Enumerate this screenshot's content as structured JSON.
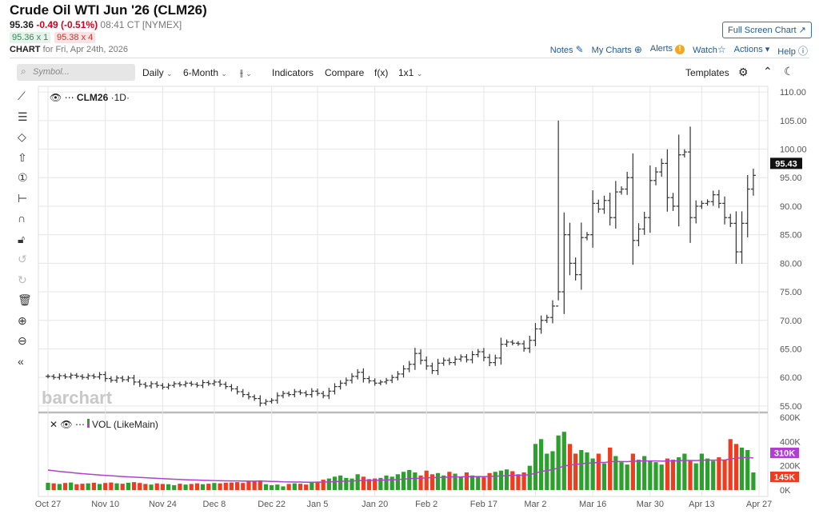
{
  "header": {
    "title": "Crude Oil WTI Jun '26 (CLM26)",
    "last": "95.36",
    "change": "-0.49 (-0.51%)",
    "time": "08:41 CT [NYMEX]",
    "bid": "95.36 x 1",
    "ask": "95.38 x 4",
    "chart_label": "CHART",
    "chart_for": "for Fri, Apr 24th, 2026"
  },
  "actions": {
    "fullscreen": "Full Screen Chart",
    "notes": "Notes",
    "my_charts": "My Charts",
    "alerts": "Alerts",
    "watch": "Watch",
    "actions": "Actions",
    "help": "Help"
  },
  "toolbar": {
    "search_placeholder": "Symbol...",
    "interval": "Daily",
    "range": "6-Month",
    "indicators": "Indicators",
    "compare": "Compare",
    "fx": "f(x)",
    "layout": "1x1",
    "templates": "Templates"
  },
  "legend": {
    "symbol": "CLM26",
    "interval": "·1D·",
    "volume": "VOL (LikeMain)"
  },
  "watermark": "barchart",
  "colors": {
    "up": "#2ca02c",
    "down": "#f03c1e",
    "ma": "#b13fd1",
    "price_tag": "#111111"
  },
  "price_axis": {
    "ticks": [
      55,
      60,
      65,
      70,
      75,
      80,
      85,
      90,
      95,
      100,
      105,
      110
    ],
    "min": 54,
    "max": 111,
    "current": "95.43"
  },
  "volume_axis": {
    "ticks": [
      "0K",
      "200K",
      "400K",
      "600K"
    ],
    "ma_tag": "310K",
    "vol_tag": "145K",
    "max": 600
  },
  "x_axis": [
    {
      "i": 0,
      "label": "Oct 27"
    },
    {
      "i": 10,
      "label": "Nov 10"
    },
    {
      "i": 20,
      "label": "Nov 24"
    },
    {
      "i": 29,
      "label": "Dec 8"
    },
    {
      "i": 39,
      "label": "Dec 22"
    },
    {
      "i": 47,
      "label": "Jan 5"
    },
    {
      "i": 57,
      "label": "Jan 20"
    },
    {
      "i": 66,
      "label": "Feb 2"
    },
    {
      "i": 76,
      "label": "Feb 17"
    },
    {
      "i": 85,
      "label": "Mar 2"
    },
    {
      "i": 95,
      "label": "Mar 16"
    },
    {
      "i": 105,
      "label": "Mar 30"
    },
    {
      "i": 114,
      "label": "Apr 13"
    },
    {
      "i": 124,
      "label": "Apr 27"
    }
  ],
  "chart_data": {
    "type": "ohlc",
    "closes": [
      60.2,
      60.0,
      60.3,
      60.1,
      60.4,
      60.2,
      60.0,
      60.3,
      60.1,
      60.5,
      59.8,
      59.5,
      59.9,
      59.6,
      59.9,
      59.2,
      58.8,
      58.5,
      58.9,
      58.6,
      58.3,
      58.6,
      58.9,
      58.7,
      59.0,
      58.8,
      58.6,
      59.1,
      58.9,
      59.2,
      58.8,
      58.4,
      58.0,
      57.5,
      57.0,
      56.6,
      56.3,
      55.5,
      55.8,
      56.0,
      56.8,
      57.2,
      57.0,
      57.5,
      57.3,
      57.0,
      57.6,
      57.2,
      56.8,
      57.6,
      58.4,
      59.0,
      59.5,
      60.2,
      60.9,
      59.8,
      59.4,
      59.0,
      59.2,
      59.5,
      60.0,
      60.6,
      61.5,
      62.3,
      64.2,
      63.0,
      62.0,
      61.2,
      62.5,
      63.0,
      62.6,
      63.2,
      63.6,
      63.1,
      64.0,
      64.5,
      63.5,
      62.6,
      63.4,
      65.8,
      66.2,
      66.0,
      65.9,
      65.1,
      66.5,
      68.5,
      70.0,
      70.5,
      72.5,
      75.0,
      85.0,
      80.0,
      78.0,
      84.5,
      85.0,
      90.5,
      89.5,
      91.0,
      88.0,
      92.5,
      93.0,
      95.0,
      84.0,
      86.0,
      88.0,
      94.5,
      96.0,
      97.5,
      91.5,
      90.0,
      99.0,
      99.5,
      88.0,
      90.0,
      90.5,
      90.8,
      92.0,
      90.5,
      88.0,
      87.0,
      82.0,
      87.0,
      93.0,
      95.4
    ],
    "volumes_k": [
      60,
      55,
      50,
      58,
      62,
      48,
      52,
      55,
      60,
      50,
      58,
      62,
      55,
      52,
      60,
      65,
      58,
      50,
      45,
      55,
      50,
      48,
      40,
      52,
      45,
      50,
      55,
      48,
      52,
      58,
      55,
      60,
      62,
      65,
      58,
      70,
      75,
      80,
      48,
      40,
      45,
      30,
      50,
      55,
      52,
      45,
      60,
      70,
      85,
      95,
      110,
      120,
      100,
      95,
      130,
      110,
      90,
      95,
      100,
      120,
      110,
      130,
      150,
      165,
      145,
      120,
      160,
      130,
      140,
      120,
      150,
      135,
      110,
      145,
      120,
      115,
      105,
      140,
      150,
      160,
      170,
      155,
      130,
      145,
      200,
      380,
      420,
      300,
      320,
      450,
      480,
      380,
      300,
      330,
      310,
      260,
      300,
      220,
      350,
      280,
      230,
      210,
      300,
      250,
      280,
      240,
      230,
      210,
      260,
      250,
      270,
      300,
      240,
      220,
      300,
      260,
      240,
      270,
      250,
      420,
      380,
      350,
      330,
      145
    ],
    "spike_high": 105
  }
}
